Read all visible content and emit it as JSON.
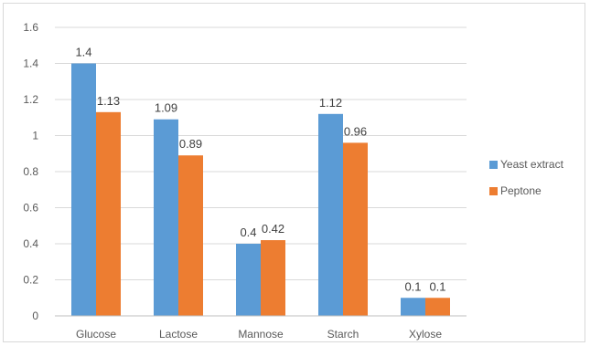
{
  "chart_data": {
    "type": "bar",
    "categories": [
      "Glucose",
      "Lactose",
      "Mannose",
      "Starch",
      "Xylose"
    ],
    "series": [
      {
        "name": "Yeast extract",
        "color": "#5B9BD5",
        "values": [
          1.4,
          1.09,
          0.4,
          1.12,
          0.1
        ],
        "labels": [
          "1.4",
          "1.09",
          "0.4",
          "1.12",
          "0.1"
        ]
      },
      {
        "name": "Peptone",
        "color": "#ED7D31",
        "values": [
          1.13,
          0.89,
          0.42,
          0.96,
          0.1
        ],
        "labels": [
          "1.13",
          "0.89",
          "0.42",
          "0.96",
          "0.1"
        ]
      }
    ],
    "ylim": [
      0,
      1.6
    ],
    "yticks": [
      "0",
      "0.2",
      "0.4",
      "0.6",
      "0.8",
      "1",
      "1.2",
      "1.4",
      "1.6"
    ],
    "grid": true,
    "legend_position": "right"
  }
}
